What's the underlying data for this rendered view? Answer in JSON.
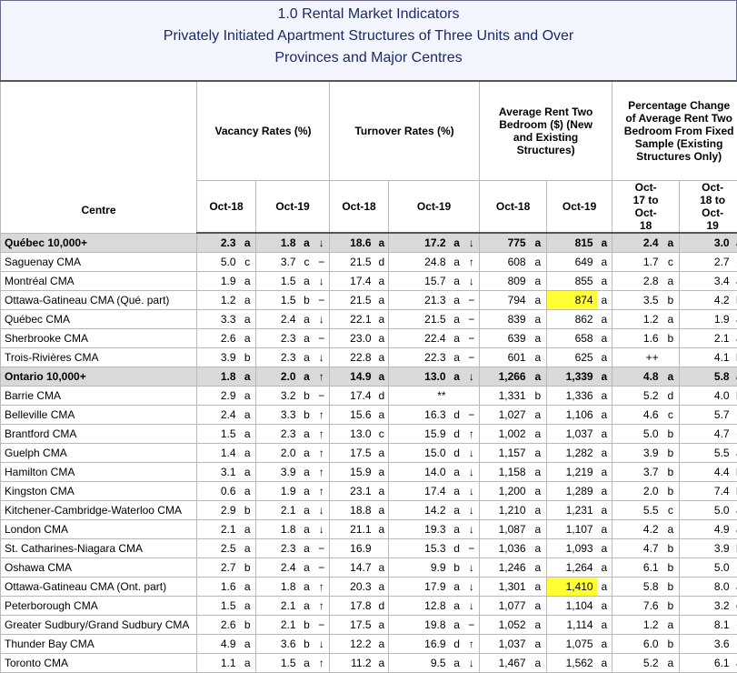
{
  "title": {
    "line1": "1.0 Rental Market Indicators",
    "line2": "Privately Initiated Apartment Structures of Three Units and Over",
    "line3": "Provinces and Major Centres"
  },
  "headers": {
    "centre": "Centre",
    "vacancy": "Vacancy Rates (%)",
    "turnover": "Turnover Rates (%)",
    "avg_rent": "Average Rent Two Bedroom ($) (New and Existing Structures)",
    "pct_change": "Percentage Change of Average Rent Two Bedroom From Fixed Sample (Existing Structures Only)",
    "oct18": "Oct-18",
    "oct19": "Oct-19",
    "p1": "Oct-17 to Oct-18",
    "p2": "Oct-18 to Oct-19"
  },
  "highlight_color": "#ffff33",
  "rows": [
    {
      "name": "Québec 10,000+",
      "prov": true,
      "v18": "2.3",
      "v18q": "a",
      "v19": "1.8",
      "v19q": "a",
      "vt": "↓",
      "t18": "18.6",
      "t18q": "a",
      "t19": "17.2",
      "t19q": "a",
      "tt": "↓",
      "r18": "775",
      "r18q": "a",
      "r19": "815",
      "r19q": "a",
      "r19hl": false,
      "p1": "2.4",
      "p1q": "a",
      "p2": "3.0",
      "p2q": "a"
    },
    {
      "name": "Saguenay CMA",
      "prov": false,
      "v18": "5.0",
      "v18q": "c",
      "v19": "3.7",
      "v19q": "c",
      "vt": "−",
      "t18": "21.5",
      "t18q": "d",
      "t19": "24.8",
      "t19q": "a",
      "tt": "↑",
      "r18": "608",
      "r18q": "a",
      "r19": "649",
      "r19q": "a",
      "r19hl": false,
      "p1": "1.7",
      "p1q": "c",
      "p2": "2.7",
      "p2q": "c"
    },
    {
      "name": "Montréal CMA",
      "prov": false,
      "v18": "1.9",
      "v18q": "a",
      "v19": "1.5",
      "v19q": "a",
      "vt": "↓",
      "t18": "17.4",
      "t18q": "a",
      "t19": "15.7",
      "t19q": "a",
      "tt": "↓",
      "r18": "809",
      "r18q": "a",
      "r19": "855",
      "r19q": "a",
      "r19hl": false,
      "p1": "2.8",
      "p1q": "a",
      "p2": "3.4",
      "p2q": "a"
    },
    {
      "name": "Ottawa-Gatineau CMA (Qué. part)",
      "prov": false,
      "v18": "1.2",
      "v18q": "a",
      "v19": "1.5",
      "v19q": "b",
      "vt": "−",
      "t18": "21.5",
      "t18q": "a",
      "t19": "21.3",
      "t19q": "a",
      "tt": "−",
      "r18": "794",
      "r18q": "a",
      "r19": "874",
      "r19q": "a",
      "r19hl": true,
      "p1": "3.5",
      "p1q": "b",
      "p2": "4.2",
      "p2q": "b"
    },
    {
      "name": "Québec CMA",
      "prov": false,
      "v18": "3.3",
      "v18q": "a",
      "v19": "2.4",
      "v19q": "a",
      "vt": "↓",
      "t18": "22.1",
      "t18q": "a",
      "t19": "21.5",
      "t19q": "a",
      "tt": "−",
      "r18": "839",
      "r18q": "a",
      "r19": "862",
      "r19q": "a",
      "r19hl": false,
      "p1": "1.2",
      "p1q": "a",
      "p2": "1.9",
      "p2q": "a"
    },
    {
      "name": "Sherbrooke CMA",
      "prov": false,
      "v18": "2.6",
      "v18q": "a",
      "v19": "2.3",
      "v19q": "a",
      "vt": "−",
      "t18": "23.0",
      "t18q": "a",
      "t19": "22.4",
      "t19q": "a",
      "tt": "−",
      "r18": "639",
      "r18q": "a",
      "r19": "658",
      "r19q": "a",
      "r19hl": false,
      "p1": "1.6",
      "p1q": "b",
      "p2": "2.1",
      "p2q": "a"
    },
    {
      "name": "Trois-Rivières CMA",
      "prov": false,
      "v18": "3.9",
      "v18q": "b",
      "v19": "2.3",
      "v19q": "a",
      "vt": "↓",
      "t18": "22.8",
      "t18q": "a",
      "t19": "22.3",
      "t19q": "a",
      "tt": "−",
      "r18": "601",
      "r18q": "a",
      "r19": "625",
      "r19q": "a",
      "r19hl": false,
      "p1": "++",
      "p1q": "",
      "p2": "4.1",
      "p2q": "b"
    },
    {
      "name": "Ontario 10,000+",
      "prov": true,
      "v18": "1.8",
      "v18q": "a",
      "v19": "2.0",
      "v19q": "a",
      "vt": "↑",
      "t18": "14.9",
      "t18q": "a",
      "t19": "13.0",
      "t19q": "a",
      "tt": "↓",
      "r18": "1,266",
      "r18q": "a",
      "r19": "1,339",
      "r19q": "a",
      "r19hl": false,
      "p1": "4.8",
      "p1q": "a",
      "p2": "5.8",
      "p2q": "a"
    },
    {
      "name": "Barrie CMA",
      "prov": false,
      "v18": "2.9",
      "v18q": "a",
      "v19": "3.2",
      "v19q": "b",
      "vt": "−",
      "t18": "17.4",
      "t18q": "d",
      "t19": "**",
      "t19q": "",
      "tt": "",
      "r18": "1,331",
      "r18q": "b",
      "r19": "1,336",
      "r19q": "a",
      "r19hl": false,
      "p1": "5.2",
      "p1q": "d",
      "p2": "4.0",
      "p2q": "b"
    },
    {
      "name": "Belleville CMA",
      "prov": false,
      "v18": "2.4",
      "v18q": "a",
      "v19": "3.3",
      "v19q": "b",
      "vt": "↑",
      "t18": "15.6",
      "t18q": "a",
      "t19": "16.3",
      "t19q": "d",
      "tt": "−",
      "r18": "1,027",
      "r18q": "a",
      "r19": "1,106",
      "r19q": "a",
      "r19hl": false,
      "p1": "4.6",
      "p1q": "c",
      "p2": "5.7",
      "p2q": "c"
    },
    {
      "name": "Brantford CMA",
      "prov": false,
      "v18": "1.5",
      "v18q": "a",
      "v19": "2.3",
      "v19q": "a",
      "vt": "↑",
      "t18": "13.0",
      "t18q": "c",
      "t19": "15.9",
      "t19q": "d",
      "tt": "↑",
      "r18": "1,002",
      "r18q": "a",
      "r19": "1,037",
      "r19q": "a",
      "r19hl": false,
      "p1": "5.0",
      "p1q": "b",
      "p2": "4.7",
      "p2q": "c"
    },
    {
      "name": "Guelph CMA",
      "prov": false,
      "v18": "1.4",
      "v18q": "a",
      "v19": "2.0",
      "v19q": "a",
      "vt": "↑",
      "t18": "17.5",
      "t18q": "a",
      "t19": "15.0",
      "t19q": "d",
      "tt": "↓",
      "r18": "1,157",
      "r18q": "a",
      "r19": "1,282",
      "r19q": "a",
      "r19hl": false,
      "p1": "3.9",
      "p1q": "b",
      "p2": "5.5",
      "p2q": "a"
    },
    {
      "name": "Hamilton CMA",
      "prov": false,
      "v18": "3.1",
      "v18q": "a",
      "v19": "3.9",
      "v19q": "a",
      "vt": "↑",
      "t18": "15.9",
      "t18q": "a",
      "t19": "14.0",
      "t19q": "a",
      "tt": "↓",
      "r18": "1,158",
      "r18q": "a",
      "r19": "1,219",
      "r19q": "a",
      "r19hl": false,
      "p1": "3.7",
      "p1q": "b",
      "p2": "4.4",
      "p2q": "b"
    },
    {
      "name": "Kingston CMA",
      "prov": false,
      "v18": "0.6",
      "v18q": "a",
      "v19": "1.9",
      "v19q": "a",
      "vt": "↑",
      "t18": "23.1",
      "t18q": "a",
      "t19": "17.4",
      "t19q": "a",
      "tt": "↓",
      "r18": "1,200",
      "r18q": "a",
      "r19": "1,289",
      "r19q": "a",
      "r19hl": false,
      "p1": "2.0",
      "p1q": "b",
      "p2": "7.4",
      "p2q": "b"
    },
    {
      "name": "Kitchener-Cambridge-Waterloo CMA",
      "prov": false,
      "v18": "2.9",
      "v18q": "b",
      "v19": "2.1",
      "v19q": "a",
      "vt": "↓",
      "t18": "18.8",
      "t18q": "a",
      "t19": "14.2",
      "t19q": "a",
      "tt": "↓",
      "r18": "1,210",
      "r18q": "a",
      "r19": "1,231",
      "r19q": "a",
      "r19hl": false,
      "p1": "5.5",
      "p1q": "c",
      "p2": "5.0",
      "p2q": "a"
    },
    {
      "name": "London CMA",
      "prov": false,
      "v18": "2.1",
      "v18q": "a",
      "v19": "1.8",
      "v19q": "a",
      "vt": "↓",
      "t18": "21.1",
      "t18q": "a",
      "t19": "19.3",
      "t19q": "a",
      "tt": "↓",
      "r18": "1,087",
      "r18q": "a",
      "r19": "1,107",
      "r19q": "a",
      "r19hl": false,
      "p1": "4.2",
      "p1q": "a",
      "p2": "4.9",
      "p2q": "a"
    },
    {
      "name": "St. Catharines-Niagara CMA",
      "prov": false,
      "v18": "2.5",
      "v18q": "a",
      "v19": "2.3",
      "v19q": "a",
      "vt": "−",
      "t18": "16.9",
      "t18q": "",
      "t19": "15.3",
      "t19q": "d",
      "tt": "−",
      "r18": "1,036",
      "r18q": "a",
      "r19": "1,093",
      "r19q": "a",
      "r19hl": false,
      "p1": "4.7",
      "p1q": "b",
      "p2": "3.9",
      "p2q": "b"
    },
    {
      "name": "Oshawa CMA",
      "prov": false,
      "v18": "2.7",
      "v18q": "b",
      "v19": "2.4",
      "v19q": "a",
      "vt": "−",
      "t18": "14.7",
      "t18q": "a",
      "t19": "9.9",
      "t19q": "b",
      "tt": "↓",
      "r18": "1,246",
      "r18q": "a",
      "r19": "1,264",
      "r19q": "a",
      "r19hl": false,
      "p1": "6.1",
      "p1q": "b",
      "p2": "5.0",
      "p2q": "c"
    },
    {
      "name": "Ottawa-Gatineau CMA (Ont. part)",
      "prov": false,
      "v18": "1.6",
      "v18q": "a",
      "v19": "1.8",
      "v19q": "a",
      "vt": "↑",
      "t18": "20.3",
      "t18q": "a",
      "t19": "17.9",
      "t19q": "a",
      "tt": "↓",
      "r18": "1,301",
      "r18q": "a",
      "r19": "1,410",
      "r19q": "a",
      "r19hl": true,
      "p1": "5.8",
      "p1q": "b",
      "p2": "8.0",
      "p2q": "a"
    },
    {
      "name": "Peterborough CMA",
      "prov": false,
      "v18": "1.5",
      "v18q": "a",
      "v19": "2.1",
      "v19q": "a",
      "vt": "↑",
      "t18": "17.8",
      "t18q": "d",
      "t19": "12.8",
      "t19q": "a",
      "tt": "↓",
      "r18": "1,077",
      "r18q": "a",
      "r19": "1,104",
      "r19q": "a",
      "r19hl": false,
      "p1": "7.6",
      "p1q": "b",
      "p2": "3.2",
      "p2q": "d"
    },
    {
      "name": "Greater Sudbury/Grand Sudbury CMA",
      "prov": false,
      "v18": "2.6",
      "v18q": "b",
      "v19": "2.1",
      "v19q": "b",
      "vt": "−",
      "t18": "17.5",
      "t18q": "a",
      "t19": "19.8",
      "t19q": "a",
      "tt": "−",
      "r18": "1,052",
      "r18q": "a",
      "r19": "1,114",
      "r19q": "a",
      "r19hl": false,
      "p1": "1.2",
      "p1q": "a",
      "p2": "8.1",
      "p2q": "c"
    },
    {
      "name": "Thunder Bay CMA",
      "prov": false,
      "v18": "4.9",
      "v18q": "a",
      "v19": "3.6",
      "v19q": "b",
      "vt": "↓",
      "t18": "12.2",
      "t18q": "a",
      "t19": "16.9",
      "t19q": "d",
      "tt": "↑",
      "r18": "1,037",
      "r18q": "a",
      "r19": "1,075",
      "r19q": "a",
      "r19hl": false,
      "p1": "6.0",
      "p1q": "b",
      "p2": "3.6",
      "p2q": "c"
    },
    {
      "name": "Toronto CMA",
      "prov": false,
      "v18": "1.1",
      "v18q": "a",
      "v19": "1.5",
      "v19q": "a",
      "vt": "↑",
      "t18": "11.2",
      "t18q": "a",
      "t19": "9.5",
      "t19q": "a",
      "tt": "↓",
      "r18": "1,467",
      "r18q": "a",
      "r19": "1,562",
      "r19q": "a",
      "r19hl": false,
      "p1": "5.2",
      "p1q": "a",
      "p2": "6.1",
      "p2q": "a"
    }
  ]
}
